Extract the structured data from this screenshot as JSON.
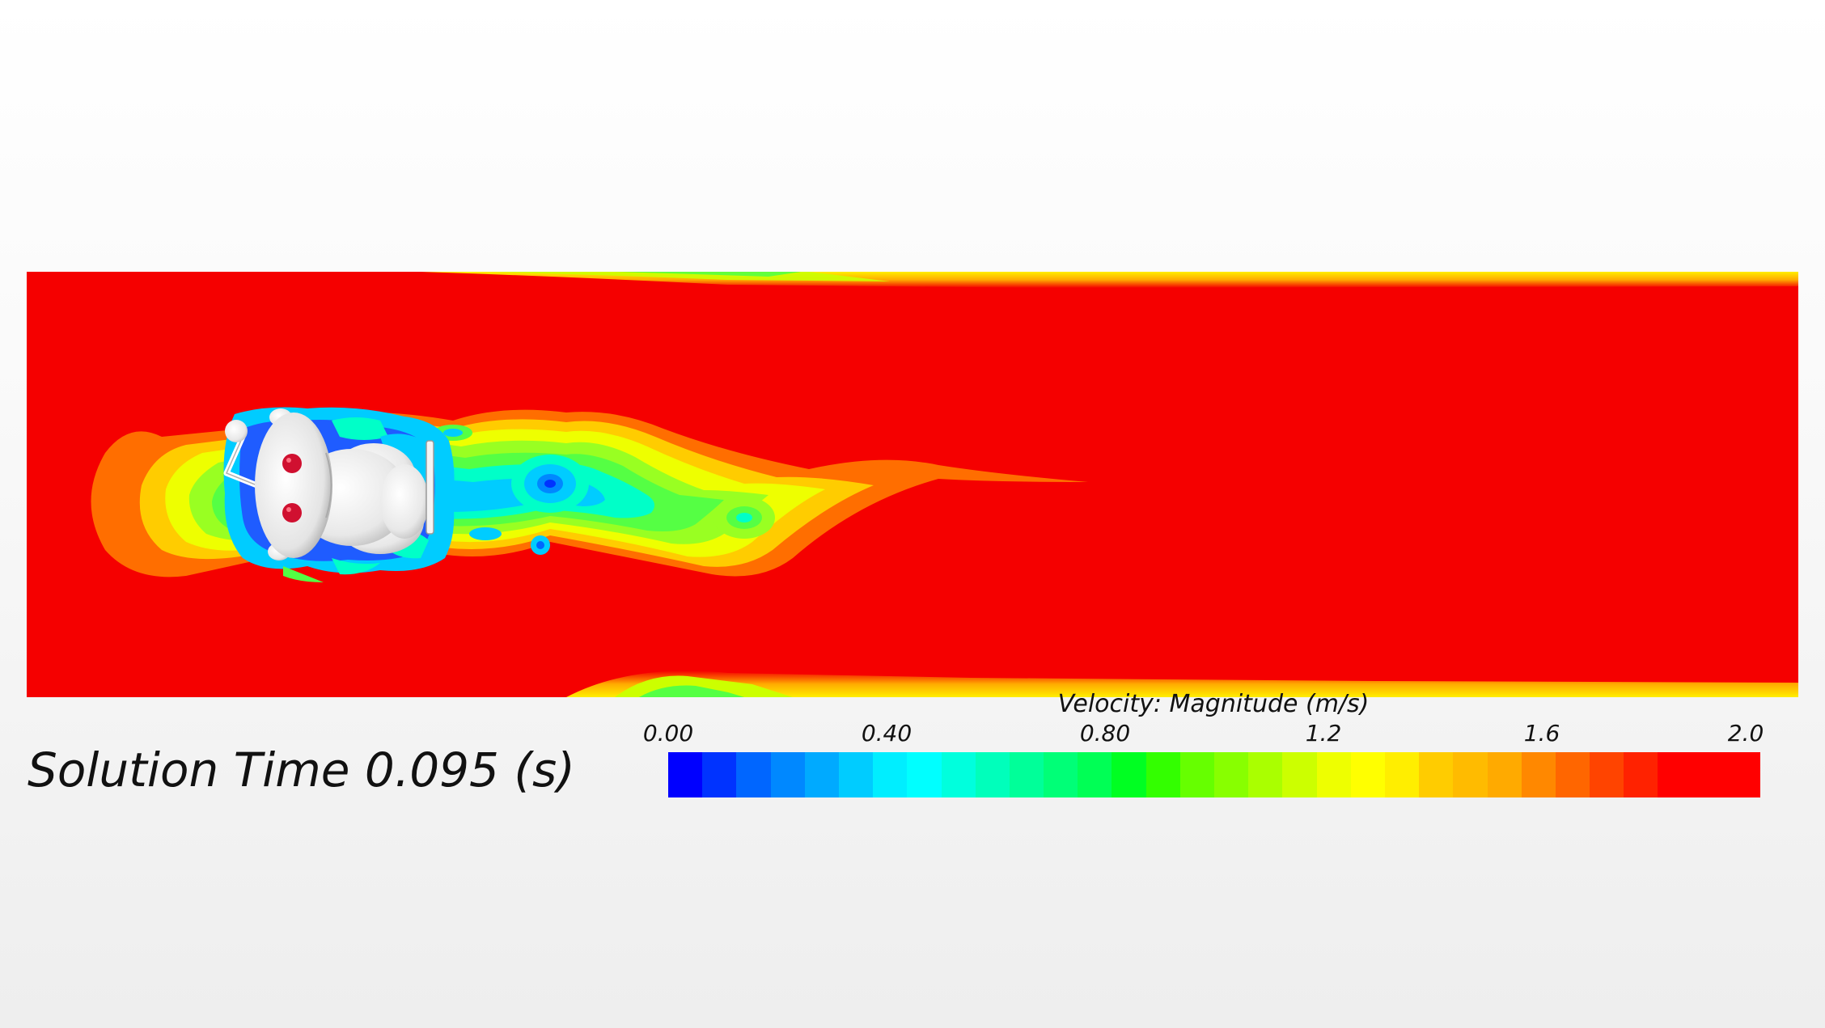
{
  "solution_time": {
    "label": "Solution Time 0.095 (s)"
  },
  "colorbar": {
    "title": "Velocity: Magnitude (m/s)",
    "ticks": [
      {
        "label": "0.00",
        "value": 0.0
      },
      {
        "label": "0.40",
        "value": 0.4
      },
      {
        "label": "0.80",
        "value": 0.8
      },
      {
        "label": "1.2",
        "value": 1.2
      },
      {
        "label": "1.6",
        "value": 1.6
      },
      {
        "label": "2.0",
        "value": 2.0
      }
    ],
    "range": [
      0.0,
      2.0
    ],
    "colors": [
      "#0000ff",
      "#0033ff",
      "#0066ff",
      "#0088ff",
      "#00aaff",
      "#00ccff",
      "#00eeff",
      "#00ffff",
      "#00ffdd",
      "#00ffbb",
      "#00ff99",
      "#00ff77",
      "#00ff55",
      "#00ff22",
      "#33ff00",
      "#66ff00",
      "#88ff00",
      "#aaff00",
      "#ccff00",
      "#eeff00",
      "#ffff00",
      "#ffee00",
      "#ffcc00",
      "#ffbb00",
      "#ffaa00",
      "#ff8800",
      "#ff6600",
      "#ff4400",
      "#ff2200",
      "#ff0000",
      "#ff0000",
      "#ff0000"
    ]
  },
  "field_colors": {
    "freestream": "#f50000",
    "wake_orange": "#ff6e00",
    "wake_yellow": "#ffe600",
    "wake_green": "#55ff44",
    "wake_cyan": "#00ffc8",
    "wake_blue": "#1f5cff",
    "body": "#ffffff",
    "eyes": "#d01030"
  }
}
